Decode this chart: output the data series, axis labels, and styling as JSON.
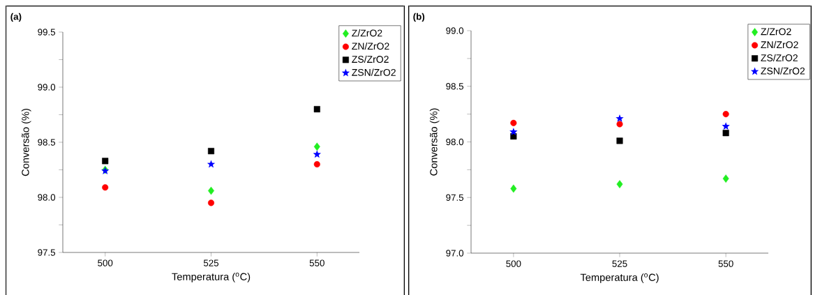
{
  "chart_data": [
    {
      "type": "scatter",
      "title": "(a)",
      "xlabel": "Temperatura ($^{o}$C)",
      "ylabel": "Conversão (%)",
      "x": [
        500,
        525,
        550
      ],
      "xlim": [
        490,
        560
      ],
      "xticks": [
        500,
        525,
        550
      ],
      "ylim": [
        97.5,
        99.5
      ],
      "yticks": [
        {
          "value": 97.5,
          "label": "97.5"
        },
        {
          "value": 97.75,
          "label": null
        },
        {
          "value": 98.0,
          "label": "98.0"
        },
        {
          "value": 98.25,
          "label": null
        },
        {
          "value": 98.5,
          "label": "98.5"
        },
        {
          "value": 98.75,
          "label": null
        },
        {
          "value": 99.0,
          "label": "99.0"
        },
        {
          "value": 99.25,
          "label": null
        },
        {
          "value": 99.5,
          "label": "99.5"
        }
      ],
      "legend": "top right",
      "series": [
        {
          "name": "Z/ZrO2",
          "color": "#22ee22",
          "marker": "diamond",
          "values": [
            98.25,
            98.06,
            98.46
          ]
        },
        {
          "name": "ZN/ZrO2",
          "color": "#ff0000",
          "marker": "circle",
          "values": [
            98.09,
            97.95,
            98.3
          ]
        },
        {
          "name": "ZS/ZrO2",
          "color": "#000000",
          "marker": "square",
          "values": [
            98.33,
            98.42,
            98.8
          ]
        },
        {
          "name": "ZSN/ZrO2",
          "color": "#0000ff",
          "marker": "star",
          "values": [
            98.24,
            98.3,
            98.39
          ]
        }
      ]
    },
    {
      "type": "scatter",
      "title": "(b)",
      "xlabel": "Temperatura ($^{o}$C)",
      "ylabel": "Conversão (%)",
      "x": [
        500,
        525,
        550
      ],
      "xlim": [
        490,
        560
      ],
      "xticks": [
        500,
        525,
        550
      ],
      "ylim": [
        97.0,
        99.0
      ],
      "yticks": [
        {
          "value": 97.0,
          "label": "97.0"
        },
        {
          "value": 97.25,
          "label": null
        },
        {
          "value": 97.5,
          "label": "97.5"
        },
        {
          "value": 97.75,
          "label": null
        },
        {
          "value": 98.0,
          "label": "98.0"
        },
        {
          "value": 98.25,
          "label": null
        },
        {
          "value": 98.5,
          "label": "98.5"
        },
        {
          "value": 98.75,
          "label": null
        },
        {
          "value": 99.0,
          "label": "99.0"
        }
      ],
      "legend": "top right",
      "series": [
        {
          "name": "Z/ZrO2",
          "color": "#22ee22",
          "marker": "diamond",
          "values": [
            97.58,
            97.62,
            97.67
          ]
        },
        {
          "name": "ZN/ZrO2",
          "color": "#ff0000",
          "marker": "circle",
          "values": [
            98.17,
            98.16,
            98.25
          ]
        },
        {
          "name": "ZS/ZrO2",
          "color": "#000000",
          "marker": "square",
          "values": [
            98.05,
            98.01,
            98.08
          ]
        },
        {
          "name": "ZSN/ZrO2",
          "color": "#0000ff",
          "marker": "star",
          "values": [
            98.09,
            98.21,
            98.14
          ]
        }
      ]
    }
  ]
}
